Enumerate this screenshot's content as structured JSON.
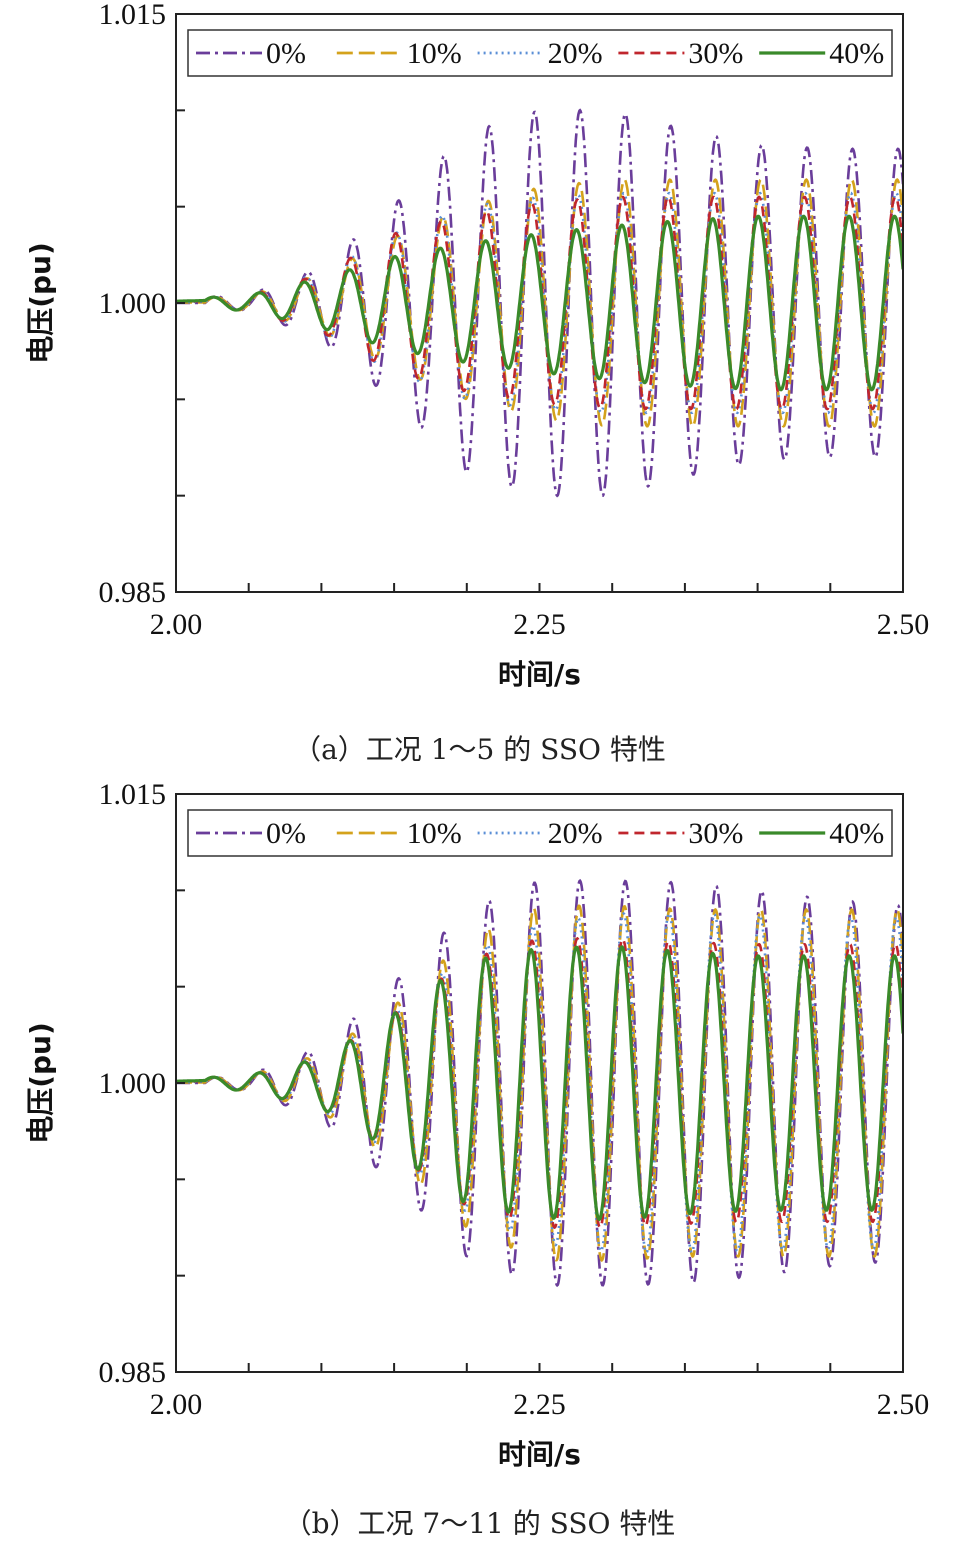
{
  "chart_data": [
    {
      "type": "line",
      "caption": "（a）工况 1～5 的 SSO 特性",
      "xlabel": "时间/s",
      "ylabel": "电压(pu)",
      "xlim": [
        2.0,
        2.5
      ],
      "ylim": [
        0.985,
        1.015
      ],
      "xticks": [
        "2.00",
        "2.25",
        "2.50"
      ],
      "yticks": [
        "0.985",
        "1.000",
        "1.015"
      ],
      "legend_position": "top",
      "freq_hz": 32,
      "onset_s": 2.02,
      "series": [
        {
          "name": "0%",
          "color": "#6a3d9a",
          "dash": "dashdot",
          "env": [
            [
              2.0,
              0.0003
            ],
            [
              2.05,
              0.0004
            ],
            [
              2.1,
              0.0019
            ],
            [
              2.15,
              0.0051
            ],
            [
              2.2,
              0.0088
            ],
            [
              2.25,
              0.01
            ],
            [
              2.3,
              0.01
            ],
            [
              2.35,
              0.009
            ],
            [
              2.4,
              0.0082
            ],
            [
              2.45,
              0.008
            ],
            [
              2.5,
              0.008
            ]
          ]
        },
        {
          "name": "10%",
          "color": "#d4a21c",
          "dash": "longdash",
          "env": [
            [
              2.0,
              0.0002
            ],
            [
              2.05,
              0.0004
            ],
            [
              2.1,
              0.0015
            ],
            [
              2.15,
              0.0034
            ],
            [
              2.2,
              0.005
            ],
            [
              2.25,
              0.006
            ],
            [
              2.3,
              0.0064
            ],
            [
              2.35,
              0.0064
            ],
            [
              2.4,
              0.0064
            ],
            [
              2.45,
              0.0064
            ],
            [
              2.5,
              0.0064
            ]
          ]
        },
        {
          "name": "20%",
          "color": "#5b8fd6",
          "dash": "dotted",
          "env": [
            [
              2.0,
              0.0002
            ],
            [
              2.05,
              0.0004
            ],
            [
              2.1,
              0.0016
            ],
            [
              2.15,
              0.0036
            ],
            [
              2.2,
              0.005
            ],
            [
              2.25,
              0.0055
            ],
            [
              2.3,
              0.0057
            ],
            [
              2.35,
              0.0057
            ],
            [
              2.4,
              0.0057
            ],
            [
              2.45,
              0.0057
            ],
            [
              2.5,
              0.0057
            ]
          ]
        },
        {
          "name": "30%",
          "color": "#c0262d",
          "dash": "dashed",
          "env": [
            [
              2.0,
              0.0002
            ],
            [
              2.05,
              0.0004
            ],
            [
              2.1,
              0.0015
            ],
            [
              2.15,
              0.0036
            ],
            [
              2.2,
              0.0046
            ],
            [
              2.25,
              0.0052
            ],
            [
              2.3,
              0.0055
            ],
            [
              2.35,
              0.0055
            ],
            [
              2.4,
              0.0055
            ],
            [
              2.45,
              0.0055
            ],
            [
              2.5,
              0.0055
            ]
          ]
        },
        {
          "name": "40%",
          "color": "#3a8a2a",
          "dash": "solid",
          "env": [
            [
              2.0,
              0.0002
            ],
            [
              2.05,
              0.0004
            ],
            [
              2.1,
              0.0013
            ],
            [
              2.15,
              0.0024
            ],
            [
              2.2,
              0.0031
            ],
            [
              2.25,
              0.0036
            ],
            [
              2.3,
              0.004
            ],
            [
              2.35,
              0.0043
            ],
            [
              2.4,
              0.0045
            ],
            [
              2.45,
              0.0045
            ],
            [
              2.5,
              0.0045
            ]
          ]
        }
      ]
    },
    {
      "type": "line",
      "caption": "（b）工况 7～11 的 SSO 特性",
      "xlabel": "时间/s",
      "ylabel": "电压(pu)",
      "xlim": [
        2.0,
        2.5
      ],
      "ylim": [
        0.985,
        1.015
      ],
      "xticks": [
        "2.00",
        "2.25",
        "2.50"
      ],
      "yticks": [
        "0.985",
        "1.000",
        "1.015"
      ],
      "legend_position": "top",
      "freq_hz": 32,
      "onset_s": 2.02,
      "series": [
        {
          "name": "0%",
          "color": "#6a3d9a",
          "dash": "dashdot",
          "env": [
            [
              2.0,
              0.0002
            ],
            [
              2.05,
              0.0004
            ],
            [
              2.1,
              0.0019
            ],
            [
              2.15,
              0.0052
            ],
            [
              2.2,
              0.009
            ],
            [
              2.25,
              0.0105
            ],
            [
              2.3,
              0.0105
            ],
            [
              2.35,
              0.0104
            ],
            [
              2.4,
              0.01
            ],
            [
              2.45,
              0.0095
            ],
            [
              2.5,
              0.0092
            ]
          ]
        },
        {
          "name": "10%",
          "color": "#d4a21c",
          "dash": "longdash",
          "env": [
            [
              2.0,
              0.0002
            ],
            [
              2.05,
              0.0004
            ],
            [
              2.1,
              0.0015
            ],
            [
              2.15,
              0.004
            ],
            [
              2.2,
              0.0075
            ],
            [
              2.25,
              0.0092
            ],
            [
              2.3,
              0.0092
            ],
            [
              2.35,
              0.009
            ],
            [
              2.4,
              0.009
            ],
            [
              2.45,
              0.009
            ],
            [
              2.5,
              0.009
            ]
          ]
        },
        {
          "name": "20%",
          "color": "#5b8fd6",
          "dash": "dotted",
          "env": [
            [
              2.0,
              0.0002
            ],
            [
              2.05,
              0.0004
            ],
            [
              2.1,
              0.0014
            ],
            [
              2.15,
              0.0037
            ],
            [
              2.2,
              0.0067
            ],
            [
              2.25,
              0.0083
            ],
            [
              2.3,
              0.0088
            ],
            [
              2.35,
              0.0088
            ],
            [
              2.4,
              0.0087
            ],
            [
              2.45,
              0.0086
            ],
            [
              2.5,
              0.0086
            ]
          ]
        },
        {
          "name": "30%",
          "color": "#c0262d",
          "dash": "dashed",
          "env": [
            [
              2.0,
              0.0002
            ],
            [
              2.05,
              0.0004
            ],
            [
              2.1,
              0.0013
            ],
            [
              2.15,
              0.0036
            ],
            [
              2.2,
              0.0064
            ],
            [
              2.25,
              0.0075
            ],
            [
              2.3,
              0.0075
            ],
            [
              2.35,
              0.0073
            ],
            [
              2.4,
              0.0072
            ],
            [
              2.45,
              0.0072
            ],
            [
              2.5,
              0.0072
            ]
          ]
        },
        {
          "name": "40%",
          "color": "#3a8a2a",
          "dash": "solid",
          "env": [
            [
              2.0,
              0.0002
            ],
            [
              2.05,
              0.0004
            ],
            [
              2.1,
              0.0013
            ],
            [
              2.15,
              0.0036
            ],
            [
              2.2,
              0.0063
            ],
            [
              2.25,
              0.007
            ],
            [
              2.3,
              0.0071
            ],
            [
              2.35,
              0.0068
            ],
            [
              2.4,
              0.0066
            ],
            [
              2.45,
              0.0066
            ],
            [
              2.5,
              0.0066
            ]
          ]
        }
      ]
    }
  ]
}
